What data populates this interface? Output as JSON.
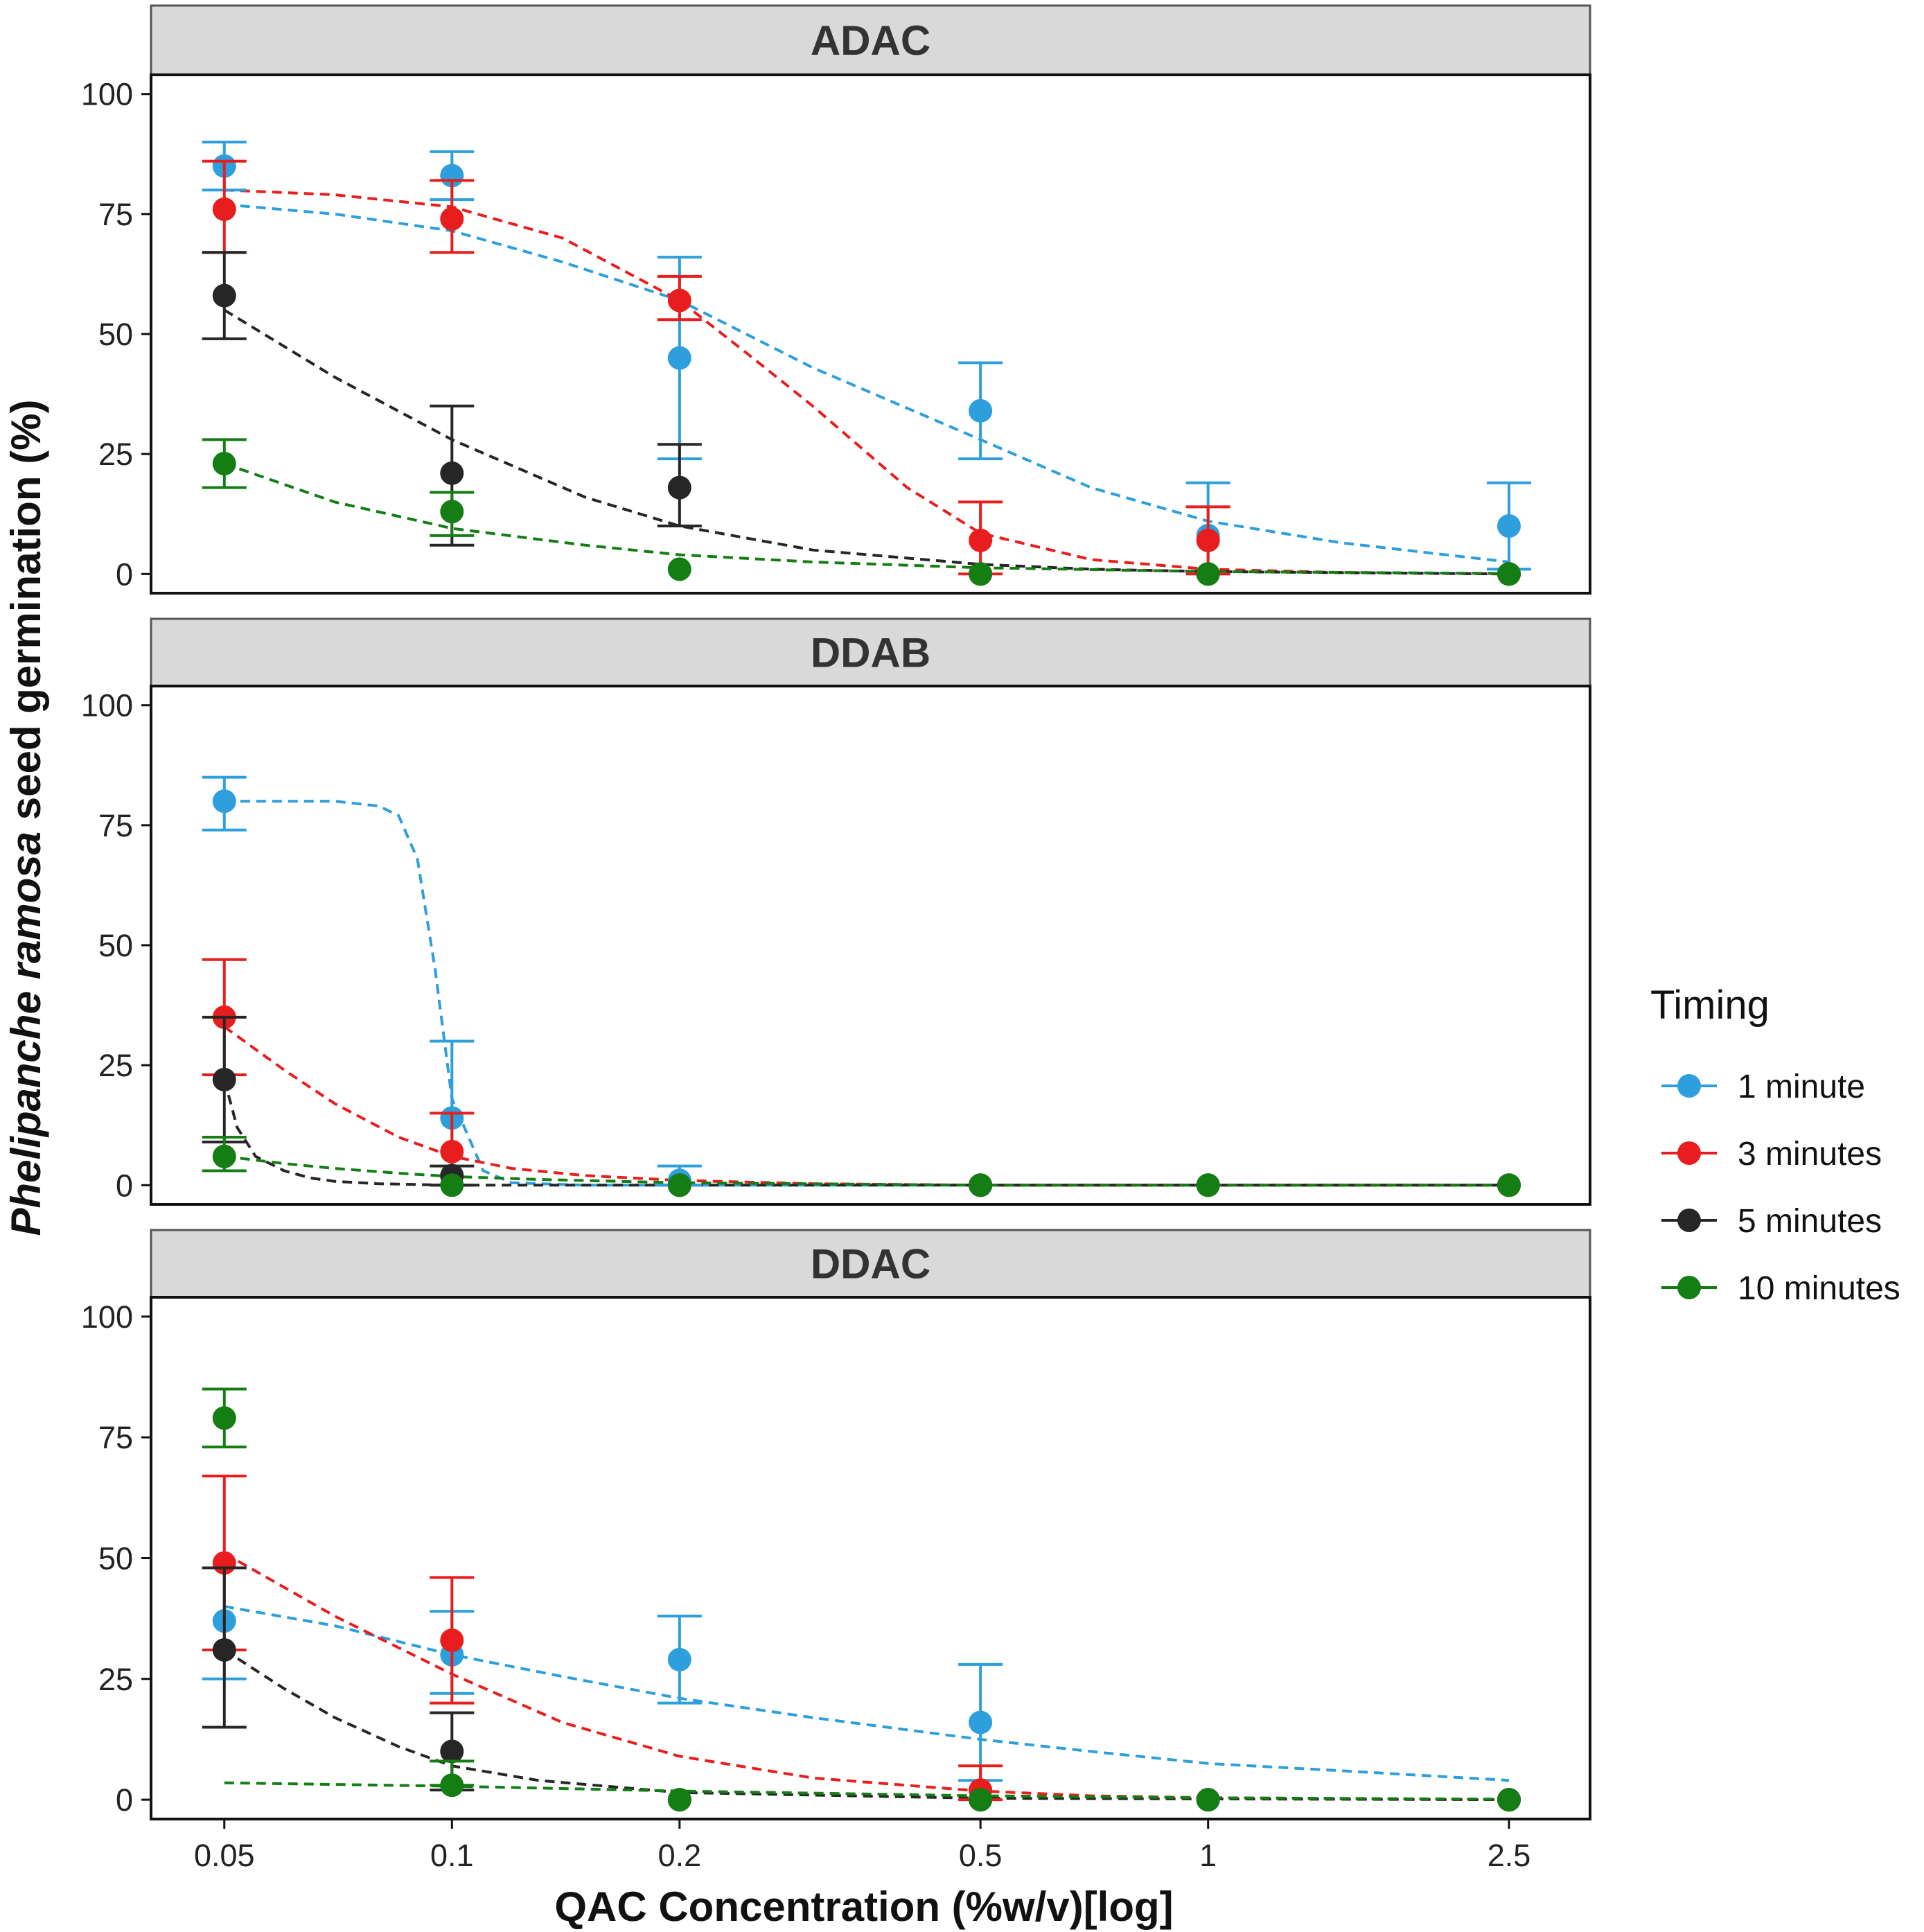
{
  "chart_data": {
    "type": "scatter",
    "xlabel": "QAC Concentration (%w/v)[log]",
    "ylabel_parts": [
      "Phelipanche",
      "ramosa",
      "seed germination (%)"
    ],
    "x_scale": "log",
    "x_ticks": [
      0.05,
      0.1,
      0.2,
      0.5,
      1,
      2.5
    ],
    "x_tick_labels": [
      "0.05",
      "0.1",
      "0.2",
      "0.5",
      "1",
      "2.5"
    ],
    "y_ticks": [
      0,
      25,
      50,
      75,
      100
    ],
    "y_tick_labels": [
      "0",
      "25",
      "50",
      "75",
      "100"
    ],
    "xlim": [
      0.04,
      3.2
    ],
    "ylim": [
      -4,
      104
    ],
    "legend": {
      "title": "Timing",
      "position": "right",
      "entries": [
        "1 minute",
        "3 minutes",
        "5 minutes",
        "10 minutes"
      ]
    },
    "series_colors": {
      "1 minute": "#2d9fdc",
      "3 minutes": "#e81e1e",
      "5 minutes": "#262626",
      "10 minutes": "#147d14"
    },
    "x": [
      0.05,
      0.1,
      0.2,
      0.5,
      1,
      2.5
    ],
    "panels": [
      {
        "title": "ADAC",
        "series": [
          {
            "name": "1 minute",
            "values": [
              85,
              83,
              45,
              34,
              8,
              10
            ],
            "err_low": [
              80,
              78,
              24,
              24,
              0,
              1
            ],
            "err_high": [
              90,
              88,
              66,
              44,
              19,
              19
            ],
            "fit_x": [
              0.05,
              0.07,
              0.1,
              0.14,
              0.2,
              0.3,
              0.5,
              0.7,
              1,
              1.5,
              2.5
            ],
            "fit_y": [
              77,
              75,
              71.5,
              65,
              57,
              43,
              28,
              18,
              11,
              6.5,
              2.5
            ]
          },
          {
            "name": "3 minutes",
            "values": [
              76,
              74,
              57,
              7,
              7,
              0
            ],
            "err_low": [
              67,
              67,
              53,
              0,
              0,
              0
            ],
            "err_high": [
              86,
              82,
              62,
              15,
              14,
              0
            ],
            "fit_x": [
              0.05,
              0.07,
              0.1,
              0.14,
              0.2,
              0.25,
              0.3,
              0.4,
              0.5,
              0.7,
              1,
              1.5,
              2.5
            ],
            "fit_y": [
              80,
              79,
              76.5,
              70,
              57,
              45,
              35,
              18,
              8.5,
              3,
              1,
              0.3,
              0
            ]
          },
          {
            "name": "5 minutes",
            "values": [
              58,
              21,
              18,
              0,
              0,
              0
            ],
            "err_low": [
              49,
              6,
              10,
              0,
              0,
              0
            ],
            "err_high": [
              67,
              35,
              27,
              0,
              0,
              0
            ],
            "fit_x": [
              0.05,
              0.07,
              0.1,
              0.15,
              0.2,
              0.3,
              0.5,
              0.7,
              1,
              2.5
            ],
            "fit_y": [
              55,
              41,
              28,
              16,
              10,
              5,
              2,
              1,
              0.5,
              0
            ]
          },
          {
            "name": "10 minutes",
            "values": [
              23,
              13,
              1,
              0,
              0,
              0
            ],
            "err_low": [
              18,
              8,
              1,
              0,
              0,
              0
            ],
            "err_high": [
              28,
              17,
              1,
              0,
              0,
              0
            ],
            "fit_x": [
              0.05,
              0.07,
              0.1,
              0.15,
              0.2,
              0.3,
              0.5,
              1,
              2.5
            ],
            "fit_y": [
              23,
              15,
              9.5,
              6,
              4,
              2.5,
              1.3,
              0.5,
              0.1
            ]
          }
        ]
      },
      {
        "title": "DDAB",
        "series": [
          {
            "name": "1 minute",
            "values": [
              80,
              14,
              1,
              0,
              0,
              0
            ],
            "err_low": [
              74,
              0,
              0,
              0,
              0,
              0
            ],
            "err_high": [
              85,
              30,
              4,
              0,
              0,
              0
            ],
            "fit_x": [
              0.05,
              0.06,
              0.07,
              0.08,
              0.085,
              0.09,
              0.095,
              0.1,
              0.11,
              0.12,
              0.15,
              0.2,
              2.5
            ],
            "fit_y": [
              80,
              80,
              80,
              79,
              77,
              68,
              45,
              18,
              3,
              0.5,
              0,
              0,
              0
            ]
          },
          {
            "name": "3 minutes",
            "values": [
              35,
              7,
              0,
              0,
              0,
              0
            ],
            "err_low": [
              23,
              0,
              0,
              0,
              0,
              0
            ],
            "err_high": [
              47,
              15,
              0,
              0,
              0,
              0
            ],
            "fit_x": [
              0.05,
              0.06,
              0.07,
              0.085,
              0.1,
              0.12,
              0.15,
              0.2,
              0.3,
              0.5,
              2.5
            ],
            "fit_y": [
              33,
              24,
              17,
              10,
              6,
              3.5,
              2,
              1,
              0.3,
              0,
              0
            ]
          },
          {
            "name": "5 minutes",
            "values": [
              22,
              2,
              0,
              0,
              0,
              0
            ],
            "err_low": [
              9,
              0,
              0,
              0,
              0,
              0
            ],
            "err_high": [
              35,
              4,
              0,
              0,
              0,
              0
            ],
            "fit_x": [
              0.05,
              0.052,
              0.055,
              0.06,
              0.065,
              0.07,
              0.08,
              0.1,
              0.2,
              2.5
            ],
            "fit_y": [
              22,
              12,
              6,
              3,
              1.5,
              0.8,
              0.3,
              0,
              0,
              0
            ]
          },
          {
            "name": "10 minutes",
            "values": [
              6,
              0,
              0,
              0,
              0,
              0
            ],
            "err_low": [
              3,
              0,
              0,
              0,
              0,
              0
            ],
            "err_high": [
              10,
              0,
              0,
              0,
              0,
              0
            ],
            "fit_x": [
              0.05,
              0.06,
              0.07,
              0.085,
              0.1,
              0.13,
              0.2,
              0.5,
              2.5
            ],
            "fit_y": [
              6,
              4.5,
              3.5,
              2.5,
              1.8,
              1.2,
              0.5,
              0,
              0
            ]
          }
        ]
      },
      {
        "title": "DDAC",
        "series": [
          {
            "name": "1 minute",
            "values": [
              37,
              30,
              29,
              16,
              0,
              0
            ],
            "err_low": [
              25,
              22,
              20,
              4,
              0,
              0
            ],
            "err_high": [
              48,
              39,
              38,
              28,
              0,
              0
            ],
            "fit_x": [
              0.05,
              0.07,
              0.1,
              0.14,
              0.2,
              0.3,
              0.5,
              0.7,
              1,
              1.5,
              2.5
            ],
            "fit_y": [
              40,
              36,
              30,
              25.5,
              21,
              17,
              12.5,
              10,
              7.5,
              6,
              4
            ]
          },
          {
            "name": "3 minutes",
            "values": [
              49,
              33,
              0,
              2,
              0,
              0
            ],
            "err_low": [
              31,
              20,
              0,
              0,
              0,
              0
            ],
            "err_high": [
              67,
              46,
              0,
              7,
              0,
              0
            ],
            "fit_x": [
              0.05,
              0.07,
              0.1,
              0.14,
              0.2,
              0.3,
              0.5,
              0.7,
              1,
              2.5
            ],
            "fit_y": [
              51,
              38,
              26,
              16,
              9,
              4.5,
              1.8,
              0.8,
              0.4,
              0
            ]
          },
          {
            "name": "5 minutes",
            "values": [
              31,
              10,
              0,
              0,
              0,
              0
            ],
            "err_low": [
              15,
              2,
              0,
              0,
              0,
              0
            ],
            "err_high": [
              48,
              18,
              0,
              0,
              0,
              0
            ],
            "fit_x": [
              0.05,
              0.06,
              0.07,
              0.085,
              0.1,
              0.13,
              0.2,
              0.5,
              2.5
            ],
            "fit_y": [
              31,
              23,
              17,
              11,
              7,
              4,
              1.5,
              0.3,
              0
            ]
          },
          {
            "name": "10 minutes",
            "values": [
              79,
              3,
              0,
              0,
              0,
              0
            ],
            "err_low": [
              73,
              3,
              0,
              0,
              0,
              0
            ],
            "err_high": [
              85,
              8,
              0,
              0,
              0,
              0
            ],
            "fit_x": [
              0.05,
              0.1,
              0.2,
              0.5,
              1,
              2.5
            ],
            "fit_y": [
              3.5,
              2.8,
              1.8,
              0.8,
              0.4,
              0.1
            ]
          }
        ]
      }
    ]
  }
}
